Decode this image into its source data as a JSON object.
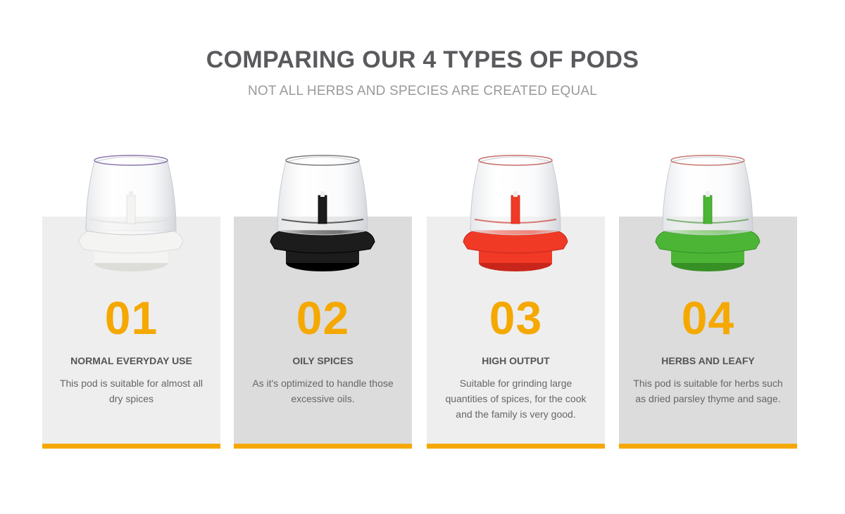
{
  "header": {
    "title": "COMPARING OUR 4 TYPES OF PODS",
    "subtitle": "NOT ALL HERBS AND SPECIES ARE CREATED EQUAL"
  },
  "colors": {
    "accent": "#f5a800",
    "card_light": "#eeeeee",
    "card_dark": "#dcdcdc"
  },
  "pods": [
    {
      "number": "01",
      "title": "NORMAL EVERYDAY USE",
      "description": "This pod is suitable for  almost all dry spices",
      "base_color": "#f4f4f2",
      "base_shade": "#dcdcd8",
      "rim_color": "#5b3f8c"
    },
    {
      "number": "02",
      "title": "OILY SPICES",
      "description": "As it's optimized to handle  those excessive oils.",
      "base_color": "#1c1c1c",
      "base_shade": "#000000",
      "rim_color": "#444444"
    },
    {
      "number": "03",
      "title": "HIGH OUTPUT",
      "description": "Suitable for grinding large quantities of spices, for the cook and the family is very good.",
      "base_color": "#f03a26",
      "base_shade": "#c8261a",
      "rim_color": "#b0302a"
    },
    {
      "number": "04",
      "title": "HERBS AND LEAFY",
      "description": "This pod is  suitable for herbs such as dried parsley thyme and  sage.",
      "base_color": "#4cb535",
      "base_shade": "#379026",
      "rim_color": "#b04030"
    }
  ]
}
